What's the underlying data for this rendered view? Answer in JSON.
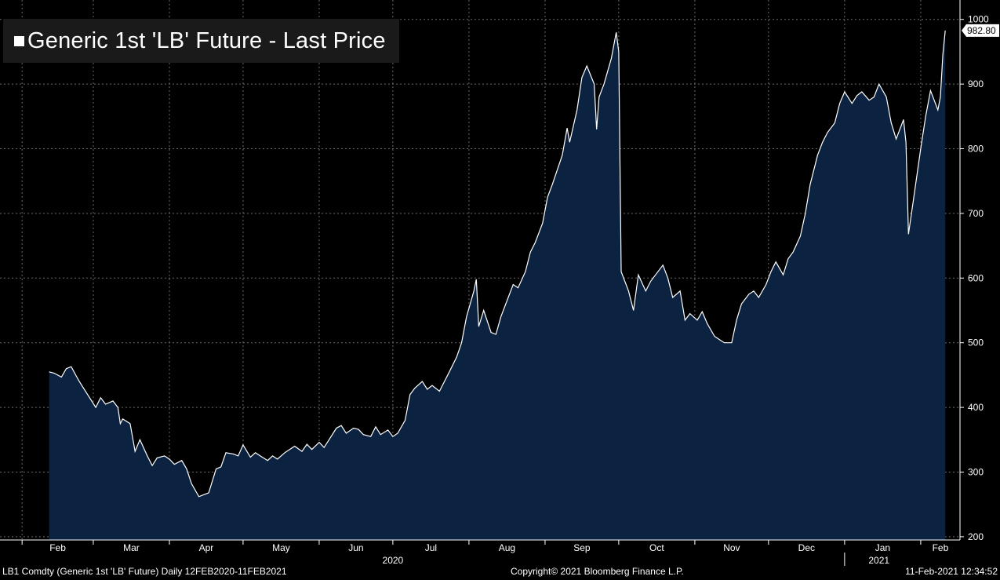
{
  "chart_data": {
    "type": "area",
    "title": "Generic 1st 'LB' Future - Last Price",
    "ylim": [
      195,
      1030
    ],
    "y_ticks": [
      200,
      300,
      400,
      500,
      600,
      700,
      800,
      900,
      1000
    ],
    "last_value_label": "982.80",
    "last_value": 982.8,
    "grid": true,
    "legend": "top-left",
    "x_range": [
      "2020-02-12",
      "2021-02-11"
    ],
    "month_ticks": [
      {
        "label": "Feb",
        "date": "2020-02-01"
      },
      {
        "label": "Mar",
        "date": "2020-03-01"
      },
      {
        "label": "Apr",
        "date": "2020-04-01"
      },
      {
        "label": "May",
        "date": "2020-05-01"
      },
      {
        "label": "Jun",
        "date": "2020-06-01"
      },
      {
        "label": "Jul",
        "date": "2020-07-01"
      },
      {
        "label": "Aug",
        "date": "2020-08-01"
      },
      {
        "label": "Sep",
        "date": "2020-09-01"
      },
      {
        "label": "Oct",
        "date": "2020-10-01"
      },
      {
        "label": "Nov",
        "date": "2020-11-01"
      },
      {
        "label": "Dec",
        "date": "2020-12-01"
      },
      {
        "label": "Jan",
        "date": "2021-01-01"
      },
      {
        "label": "Feb",
        "date": "2021-02-01"
      }
    ],
    "year_labels": [
      {
        "label": "2020",
        "date": "2020-07-01"
      },
      {
        "label": "2021",
        "date": "2021-01-15"
      }
    ],
    "series": [
      {
        "points": [
          [
            "2020-02-12",
            455
          ],
          [
            "2020-02-14",
            453
          ],
          [
            "2020-02-17",
            447
          ],
          [
            "2020-02-19",
            460
          ],
          [
            "2020-02-21",
            463
          ],
          [
            "2020-02-24",
            442
          ],
          [
            "2020-02-26",
            430
          ],
          [
            "2020-02-28",
            418
          ],
          [
            "2020-03-02",
            400
          ],
          [
            "2020-03-04",
            415
          ],
          [
            "2020-03-06",
            405
          ],
          [
            "2020-03-09",
            410
          ],
          [
            "2020-03-11",
            400
          ],
          [
            "2020-03-12",
            375
          ],
          [
            "2020-03-13",
            382
          ],
          [
            "2020-03-16",
            375
          ],
          [
            "2020-03-18",
            332
          ],
          [
            "2020-03-20",
            350
          ],
          [
            "2020-03-23",
            325
          ],
          [
            "2020-03-25",
            310
          ],
          [
            "2020-03-27",
            322
          ],
          [
            "2020-03-30",
            325
          ],
          [
            "2020-04-01",
            320
          ],
          [
            "2020-04-03",
            312
          ],
          [
            "2020-04-06",
            318
          ],
          [
            "2020-04-08",
            305
          ],
          [
            "2020-04-10",
            282
          ],
          [
            "2020-04-13",
            262
          ],
          [
            "2020-04-15",
            265
          ],
          [
            "2020-04-17",
            268
          ],
          [
            "2020-04-20",
            305
          ],
          [
            "2020-04-22",
            308
          ],
          [
            "2020-04-24",
            330
          ],
          [
            "2020-04-27",
            328
          ],
          [
            "2020-04-29",
            325
          ],
          [
            "2020-05-01",
            342
          ],
          [
            "2020-05-04",
            323
          ],
          [
            "2020-05-06",
            330
          ],
          [
            "2020-05-08",
            325
          ],
          [
            "2020-05-11",
            318
          ],
          [
            "2020-05-13",
            325
          ],
          [
            "2020-05-15",
            320
          ],
          [
            "2020-05-18",
            330
          ],
          [
            "2020-05-20",
            335
          ],
          [
            "2020-05-22",
            340
          ],
          [
            "2020-05-25",
            332
          ],
          [
            "2020-05-27",
            343
          ],
          [
            "2020-05-29",
            335
          ],
          [
            "2020-06-01",
            346
          ],
          [
            "2020-06-03",
            338
          ],
          [
            "2020-06-05",
            350
          ],
          [
            "2020-06-08",
            368
          ],
          [
            "2020-06-10",
            372
          ],
          [
            "2020-06-12",
            360
          ],
          [
            "2020-06-15",
            368
          ],
          [
            "2020-06-17",
            366
          ],
          [
            "2020-06-19",
            358
          ],
          [
            "2020-06-22",
            355
          ],
          [
            "2020-06-24",
            370
          ],
          [
            "2020-06-26",
            358
          ],
          [
            "2020-06-29",
            365
          ],
          [
            "2020-07-01",
            355
          ],
          [
            "2020-07-03",
            360
          ],
          [
            "2020-07-06",
            380
          ],
          [
            "2020-07-08",
            420
          ],
          [
            "2020-07-10",
            430
          ],
          [
            "2020-07-13",
            440
          ],
          [
            "2020-07-15",
            428
          ],
          [
            "2020-07-17",
            434
          ],
          [
            "2020-07-20",
            425
          ],
          [
            "2020-07-22",
            440
          ],
          [
            "2020-07-24",
            455
          ],
          [
            "2020-07-27",
            478
          ],
          [
            "2020-07-29",
            500
          ],
          [
            "2020-07-31",
            540
          ],
          [
            "2020-08-03",
            580
          ],
          [
            "2020-08-04",
            598
          ],
          [
            "2020-08-05",
            525
          ],
          [
            "2020-08-07",
            550
          ],
          [
            "2020-08-10",
            516
          ],
          [
            "2020-08-12",
            513
          ],
          [
            "2020-08-14",
            540
          ],
          [
            "2020-08-17",
            570
          ],
          [
            "2020-08-19",
            590
          ],
          [
            "2020-08-21",
            585
          ],
          [
            "2020-08-24",
            610
          ],
          [
            "2020-08-26",
            640
          ],
          [
            "2020-08-28",
            655
          ],
          [
            "2020-08-31",
            685
          ],
          [
            "2020-09-02",
            725
          ],
          [
            "2020-09-04",
            745
          ],
          [
            "2020-09-08",
            790
          ],
          [
            "2020-09-10",
            832
          ],
          [
            "2020-09-11",
            810
          ],
          [
            "2020-09-14",
            860
          ],
          [
            "2020-09-16",
            910
          ],
          [
            "2020-09-18",
            928
          ],
          [
            "2020-09-21",
            900
          ],
          [
            "2020-09-22",
            830
          ],
          [
            "2020-09-23",
            880
          ],
          [
            "2020-09-25",
            900
          ],
          [
            "2020-09-28",
            940
          ],
          [
            "2020-09-30",
            980
          ],
          [
            "2020-10-01",
            950
          ],
          [
            "2020-10-02",
            610
          ],
          [
            "2020-10-05",
            580
          ],
          [
            "2020-10-07",
            550
          ],
          [
            "2020-10-09",
            605
          ],
          [
            "2020-10-12",
            580
          ],
          [
            "2020-10-14",
            595
          ],
          [
            "2020-10-16",
            605
          ],
          [
            "2020-10-19",
            620
          ],
          [
            "2020-10-21",
            600
          ],
          [
            "2020-10-23",
            570
          ],
          [
            "2020-10-26",
            580
          ],
          [
            "2020-10-28",
            535
          ],
          [
            "2020-10-30",
            545
          ],
          [
            "2020-11-02",
            535
          ],
          [
            "2020-11-04",
            548
          ],
          [
            "2020-11-06",
            530
          ],
          [
            "2020-11-09",
            510
          ],
          [
            "2020-11-11",
            505
          ],
          [
            "2020-11-13",
            500
          ],
          [
            "2020-11-16",
            500
          ],
          [
            "2020-11-18",
            535
          ],
          [
            "2020-11-20",
            560
          ],
          [
            "2020-11-23",
            575
          ],
          [
            "2020-11-25",
            580
          ],
          [
            "2020-11-27",
            570
          ],
          [
            "2020-11-30",
            590
          ],
          [
            "2020-12-02",
            610
          ],
          [
            "2020-12-04",
            625
          ],
          [
            "2020-12-07",
            605
          ],
          [
            "2020-12-09",
            630
          ],
          [
            "2020-12-11",
            640
          ],
          [
            "2020-12-14",
            665
          ],
          [
            "2020-12-16",
            700
          ],
          [
            "2020-12-18",
            745
          ],
          [
            "2020-12-21",
            790
          ],
          [
            "2020-12-23",
            810
          ],
          [
            "2020-12-25",
            825
          ],
          [
            "2020-12-28",
            840
          ],
          [
            "2020-12-30",
            870
          ],
          [
            "2021-01-01",
            888
          ],
          [
            "2021-01-04",
            870
          ],
          [
            "2021-01-06",
            882
          ],
          [
            "2021-01-08",
            888
          ],
          [
            "2021-01-11",
            875
          ],
          [
            "2021-01-13",
            880
          ],
          [
            "2021-01-15",
            900
          ],
          [
            "2021-01-18",
            880
          ],
          [
            "2021-01-20",
            840
          ],
          [
            "2021-01-22",
            815
          ],
          [
            "2021-01-25",
            845
          ],
          [
            "2021-01-26",
            810
          ],
          [
            "2021-01-27",
            668
          ],
          [
            "2021-01-29",
            720
          ],
          [
            "2021-02-01",
            800
          ],
          [
            "2021-02-03",
            850
          ],
          [
            "2021-02-05",
            890
          ],
          [
            "2021-02-08",
            860
          ],
          [
            "2021-02-09",
            880
          ],
          [
            "2021-02-10",
            945
          ],
          [
            "2021-02-11",
            982.8
          ]
        ]
      }
    ]
  },
  "footer": {
    "left": "LB1 Comdty (Generic 1st 'LB' Future)  Daily 12FEB2020-11FEB2021",
    "center": "Copyright© 2021 Bloomberg Finance L.P.",
    "right": "11-Feb-2021 12:34:52"
  },
  "colors": {
    "background": "#000000",
    "area_fill": "#0b2240",
    "line": "#ffffff",
    "grid": "#6a6a6a"
  }
}
